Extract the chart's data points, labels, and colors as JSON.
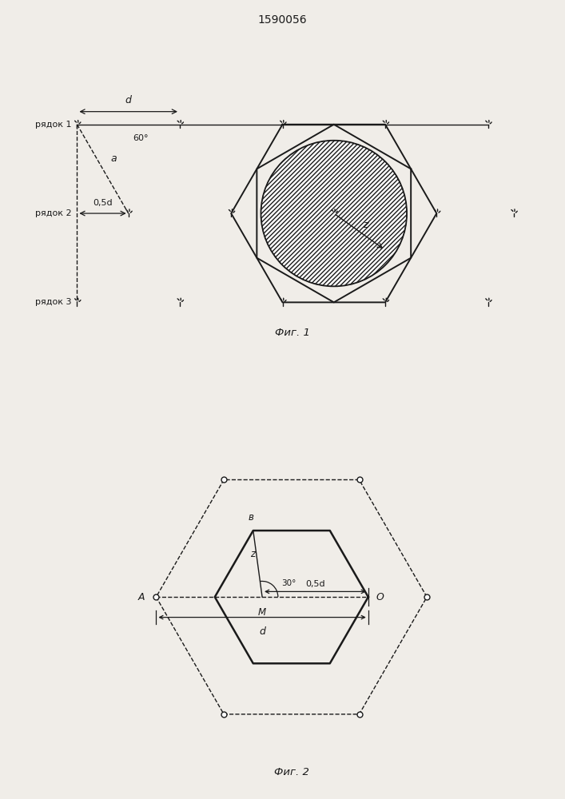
{
  "title": "1590056",
  "fig1_caption": "Фиг. 1",
  "fig2_caption": "Фиг. 2",
  "bg_color": "#f0ede8",
  "line_color": "#1a1a1a",
  "row1_label": "рядок 1",
  "row2_label": "рядок 2",
  "row3_label": "рядок 3",
  "label_d": "d",
  "label_a": "a",
  "label_05d": "0,5d",
  "label_60": "60°",
  "label_z": "z",
  "label_A": "A",
  "label_M": "M",
  "label_O": "O",
  "label_B": "в",
  "label_30": "30°"
}
